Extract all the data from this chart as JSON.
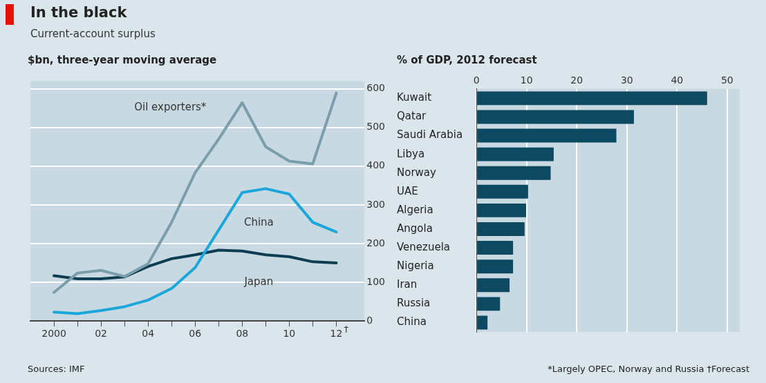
{
  "chart_data": [
    {
      "type": "line",
      "title": "In the black",
      "subtitle": "Current-account surplus",
      "ylabel": "$bn, three-year moving average",
      "x": [
        2000,
        2001,
        2002,
        2003,
        2004,
        2005,
        2006,
        2007,
        2008,
        2009,
        2010,
        2011,
        2012
      ],
      "series": [
        {
          "name": "Oil exporters*",
          "color": "#7a9eab",
          "values": [
            74,
            124,
            131,
            115,
            148,
            255,
            383,
            470,
            564,
            450,
            413,
            406,
            589
          ]
        },
        {
          "name": "China",
          "color": "#1ba6dc",
          "values": [
            23,
            19,
            27,
            37,
            54,
            84,
            138,
            235,
            332,
            342,
            328,
            255,
            230
          ]
        },
        {
          "name": "Japan",
          "color": "#0d3d52",
          "values": [
            117,
            109,
            109,
            114,
            141,
            161,
            171,
            183,
            181,
            171,
            166,
            153,
            150
          ]
        }
      ],
      "xlim": [
        1999,
        2013.2
      ],
      "xticks": [
        {
          "value": 2000,
          "label": "2000"
        },
        {
          "value": 2001,
          "label": null
        },
        {
          "value": 2002,
          "label": "02"
        },
        {
          "value": 2003,
          "label": null
        },
        {
          "value": 2004,
          "label": "04"
        },
        {
          "value": 2005,
          "label": null
        },
        {
          "value": 2006,
          "label": "06"
        },
        {
          "value": 2007,
          "label": null
        },
        {
          "value": 2008,
          "label": "08"
        },
        {
          "value": 2009,
          "label": null
        },
        {
          "value": 2010,
          "label": "10"
        },
        {
          "value": 2011,
          "label": null
        },
        {
          "value": 2012,
          "label": "12"
        }
      ],
      "ylim": [
        0,
        620
      ],
      "yticks": [
        0,
        100,
        200,
        300,
        400,
        500,
        600
      ],
      "grid": "y",
      "legend": false,
      "marker": "none",
      "line_style": "solid",
      "annotations": [
        "Sources: IMF",
        "†"
      ]
    },
    {
      "type": "bar",
      "orientation": "horizontal",
      "xlabel": "% of GDP, 2012 forecast",
      "categories": [
        "Kuwait",
        "Qatar",
        "Saudi Arabia",
        "Libya",
        "Norway",
        "UAE",
        "Algeria",
        "Angola",
        "Venezuela",
        "Nigeria",
        "Iran",
        "Russia",
        "China"
      ],
      "values": [
        46.0,
        31.4,
        27.9,
        15.4,
        14.8,
        10.3,
        9.9,
        9.6,
        7.3,
        7.3,
        6.6,
        4.7,
        2.2
      ],
      "color": "#0d4a61",
      "xlim": [
        0,
        52.5
      ],
      "xticks": [
        0,
        10,
        20,
        30,
        40,
        50
      ],
      "grid": "x",
      "legend": false,
      "annotations": [
        "*Largely OPEC, Norway and Russia",
        "†Forecast"
      ]
    }
  ]
}
